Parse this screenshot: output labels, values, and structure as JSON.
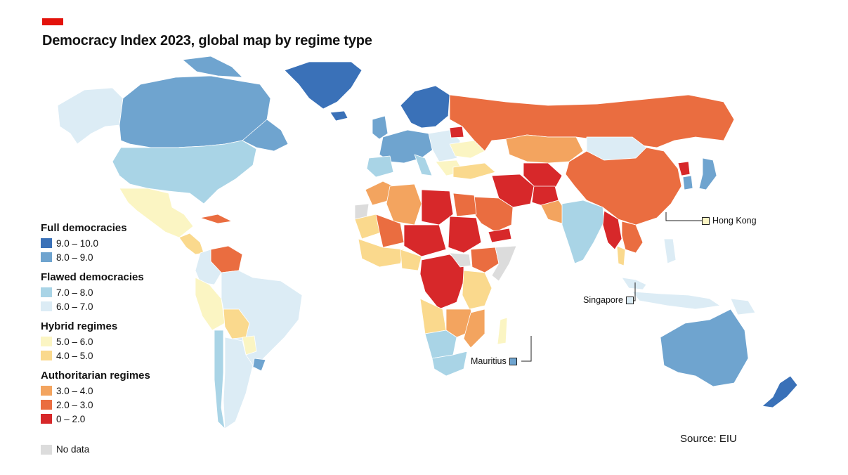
{
  "title": "Democracy Index 2023, global map by regime type",
  "source": "Source: EIU",
  "colors": {
    "accent": "#e3120b",
    "full_9_10": "#3a71b8",
    "full_8_9": "#6fa4cf",
    "flawed_7_8": "#a9d4e6",
    "flawed_6_7": "#dcecf5",
    "hybrid_5_6": "#fbf5c3",
    "hybrid_4_5": "#fad98d",
    "auth_3_4": "#f3a45f",
    "auth_2_3": "#ea6d40",
    "auth_0_2": "#d7282a",
    "nodata": "#dcdcdc"
  },
  "legend": {
    "groups": [
      {
        "title": "Full democracies",
        "items": [
          {
            "label": "9.0 – 10.0",
            "color": "#3a71b8"
          },
          {
            "label": "8.0 – 9.0",
            "color": "#6fa4cf"
          }
        ]
      },
      {
        "title": "Flawed democracies",
        "items": [
          {
            "label": "7.0 – 8.0",
            "color": "#a9d4e6"
          },
          {
            "label": "6.0 – 7.0",
            "color": "#dcecf5"
          }
        ]
      },
      {
        "title": "Hybrid regimes",
        "items": [
          {
            "label": "5.0 – 6.0",
            "color": "#fbf5c3"
          },
          {
            "label": "4.0 – 5.0",
            "color": "#fad98d"
          }
        ]
      },
      {
        "title": "Authoritarian regimes",
        "items": [
          {
            "label": "3.0 – 4.0",
            "color": "#f3a45f"
          },
          {
            "label": "2.0 – 3.0",
            "color": "#ea6d40"
          },
          {
            "label": "0 – 2.0",
            "color": "#d7282a"
          }
        ]
      }
    ],
    "nodata": {
      "label": "No data",
      "color": "#dcdcdc"
    }
  },
  "callouts": {
    "hong_kong": {
      "label": "Hong Kong",
      "color": "#fbf5c3"
    },
    "singapore": {
      "label": "Singapore",
      "color": "#dcecf5"
    },
    "mauritius": {
      "label": "Mauritius",
      "color": "#6fa4cf"
    }
  }
}
